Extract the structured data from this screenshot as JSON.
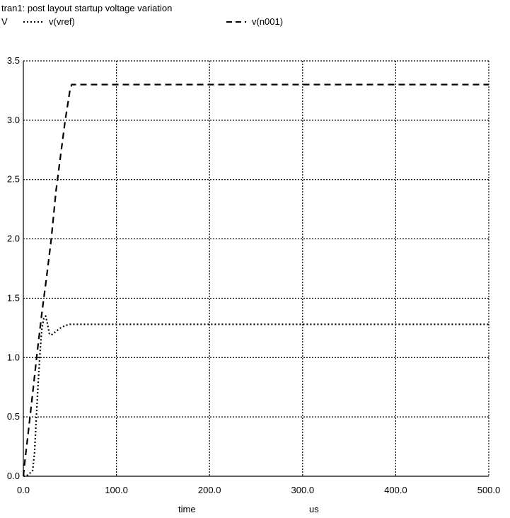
{
  "chart_data": {
    "type": "line",
    "title": "tran1: post layout startup voltage variation",
    "yunit": "V",
    "xlabel": "time",
    "xunit": "us",
    "xlim": [
      0,
      500
    ],
    "ylim": [
      0,
      3.5
    ],
    "xticks": [
      "0.0",
      "100.0",
      "200.0",
      "300.0",
      "400.0",
      "500.0"
    ],
    "yticks": [
      "0.0",
      "0.5",
      "1.0",
      "1.5",
      "2.0",
      "2.5",
      "3.0",
      "3.5"
    ],
    "grid": true,
    "legend_position": "top",
    "series": [
      {
        "name": "v(vref)",
        "style": "dotted",
        "color": "#000000",
        "x": [
          0,
          5,
          10,
          12,
          14,
          16,
          18,
          20,
          22,
          24,
          26,
          28,
          30,
          35,
          40,
          45,
          50,
          500
        ],
        "y": [
          0,
          0.01,
          0.05,
          0.2,
          0.5,
          0.8,
          1.05,
          1.25,
          1.33,
          1.35,
          1.28,
          1.2,
          1.19,
          1.22,
          1.25,
          1.27,
          1.28,
          1.28
        ]
      },
      {
        "name": "v(n001)",
        "style": "dashed",
        "color": "#000000",
        "x": [
          0,
          2,
          5,
          10,
          15,
          20,
          25,
          30,
          35,
          40,
          45,
          48,
          50,
          52,
          500
        ],
        "y": [
          0,
          0.15,
          0.35,
          0.7,
          1.05,
          1.38,
          1.68,
          2.0,
          2.4,
          2.7,
          3.0,
          3.15,
          3.25,
          3.3,
          3.3
        ]
      }
    ]
  }
}
